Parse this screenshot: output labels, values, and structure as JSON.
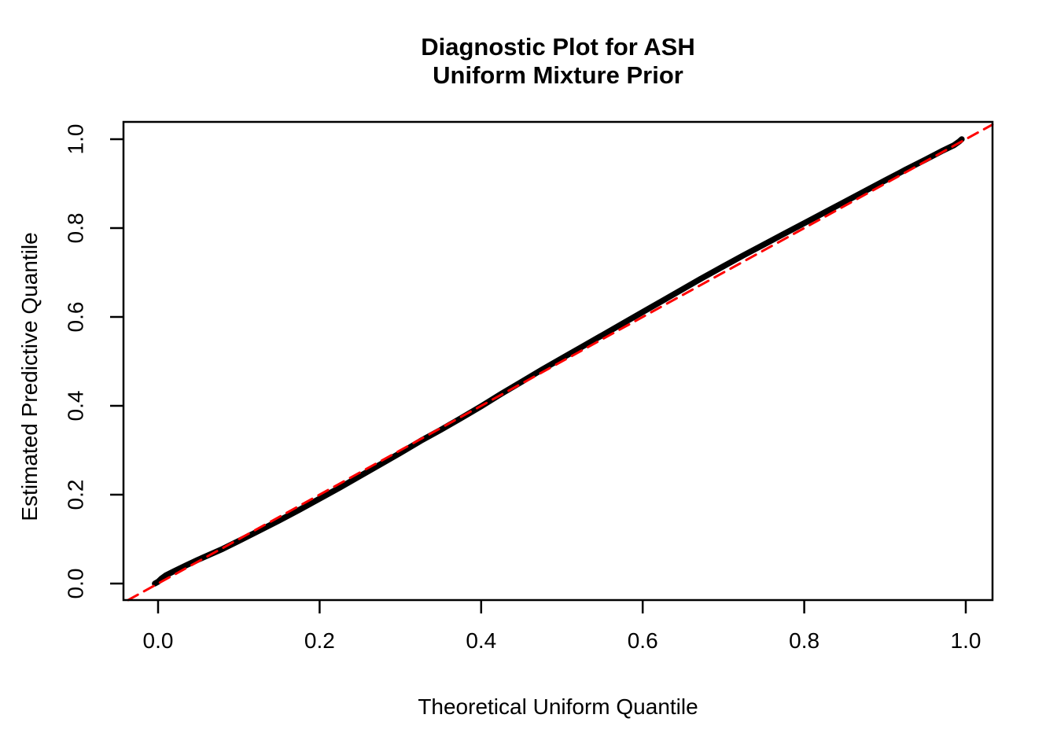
{
  "title": {
    "line1": "Diagnostic Plot for ASH",
    "line2": "Uniform Mixture Prior"
  },
  "colors": {
    "background": "#ffffff",
    "axis": "#000000",
    "curve": "#000000",
    "reference_line": "#ff0000"
  },
  "chart_data": {
    "type": "line",
    "title": "Diagnostic Plot for ASH Uniform Mixture Prior",
    "xlabel": "Theoretical Uniform Quantile",
    "ylabel": "Estimated Predictive Quantile",
    "xlim": [
      -0.043,
      1.033
    ],
    "ylim": [
      -0.037,
      1.039
    ],
    "grid": false,
    "legend": "none",
    "xticks": {
      "values": [
        0.0,
        0.2,
        0.4,
        0.6,
        0.8,
        1.0
      ],
      "labels": [
        "0.0",
        "0.2",
        "0.4",
        "0.6",
        "0.8",
        "1.0"
      ]
    },
    "yticks": {
      "values": [
        0.0,
        0.2,
        0.4,
        0.6,
        0.8,
        1.0
      ],
      "labels": [
        "0.0",
        "0.2",
        "0.4",
        "0.6",
        "0.8",
        "1.0"
      ]
    },
    "series": [
      {
        "name": "estimated-predictive-quantile-curve",
        "style": "solid",
        "color": "#000000",
        "stroke_width": 7.5,
        "points": [
          [
            -0.004,
            0.0
          ],
          [
            0.0,
            0.004
          ],
          [
            0.004,
            0.011
          ],
          [
            0.01,
            0.019
          ],
          [
            0.02,
            0.028
          ],
          [
            0.035,
            0.041
          ],
          [
            0.05,
            0.054
          ],
          [
            0.065,
            0.066
          ],
          [
            0.08,
            0.078
          ],
          [
            0.1,
            0.096
          ],
          [
            0.125,
            0.119
          ],
          [
            0.15,
            0.142
          ],
          [
            0.175,
            0.166
          ],
          [
            0.2,
            0.191
          ],
          [
            0.225,
            0.216
          ],
          [
            0.25,
            0.242
          ],
          [
            0.275,
            0.268
          ],
          [
            0.3,
            0.294
          ],
          [
            0.325,
            0.321
          ],
          [
            0.35,
            0.346
          ],
          [
            0.375,
            0.372
          ],
          [
            0.4,
            0.399
          ],
          [
            0.425,
            0.427
          ],
          [
            0.45,
            0.454
          ],
          [
            0.475,
            0.481
          ],
          [
            0.5,
            0.507
          ],
          [
            0.525,
            0.533
          ],
          [
            0.55,
            0.559
          ],
          [
            0.575,
            0.585
          ],
          [
            0.6,
            0.611
          ],
          [
            0.625,
            0.637
          ],
          [
            0.65,
            0.663
          ],
          [
            0.675,
            0.689
          ],
          [
            0.7,
            0.714
          ],
          [
            0.725,
            0.739
          ],
          [
            0.75,
            0.763
          ],
          [
            0.775,
            0.787
          ],
          [
            0.8,
            0.811
          ],
          [
            0.825,
            0.835
          ],
          [
            0.85,
            0.859
          ],
          [
            0.875,
            0.883
          ],
          [
            0.9,
            0.907
          ],
          [
            0.925,
            0.931
          ],
          [
            0.95,
            0.954
          ],
          [
            0.97,
            0.973
          ],
          [
            0.985,
            0.986
          ],
          [
            0.992,
            0.995
          ],
          [
            0.995,
            1.0
          ]
        ]
      },
      {
        "name": "reference-diagonal",
        "style": "dashed",
        "color": "#ff0000",
        "stroke_width": 3,
        "dash": [
          14,
          9
        ],
        "points": [
          [
            -0.037,
            -0.037
          ],
          [
            1.033,
            1.033
          ]
        ]
      }
    ]
  }
}
